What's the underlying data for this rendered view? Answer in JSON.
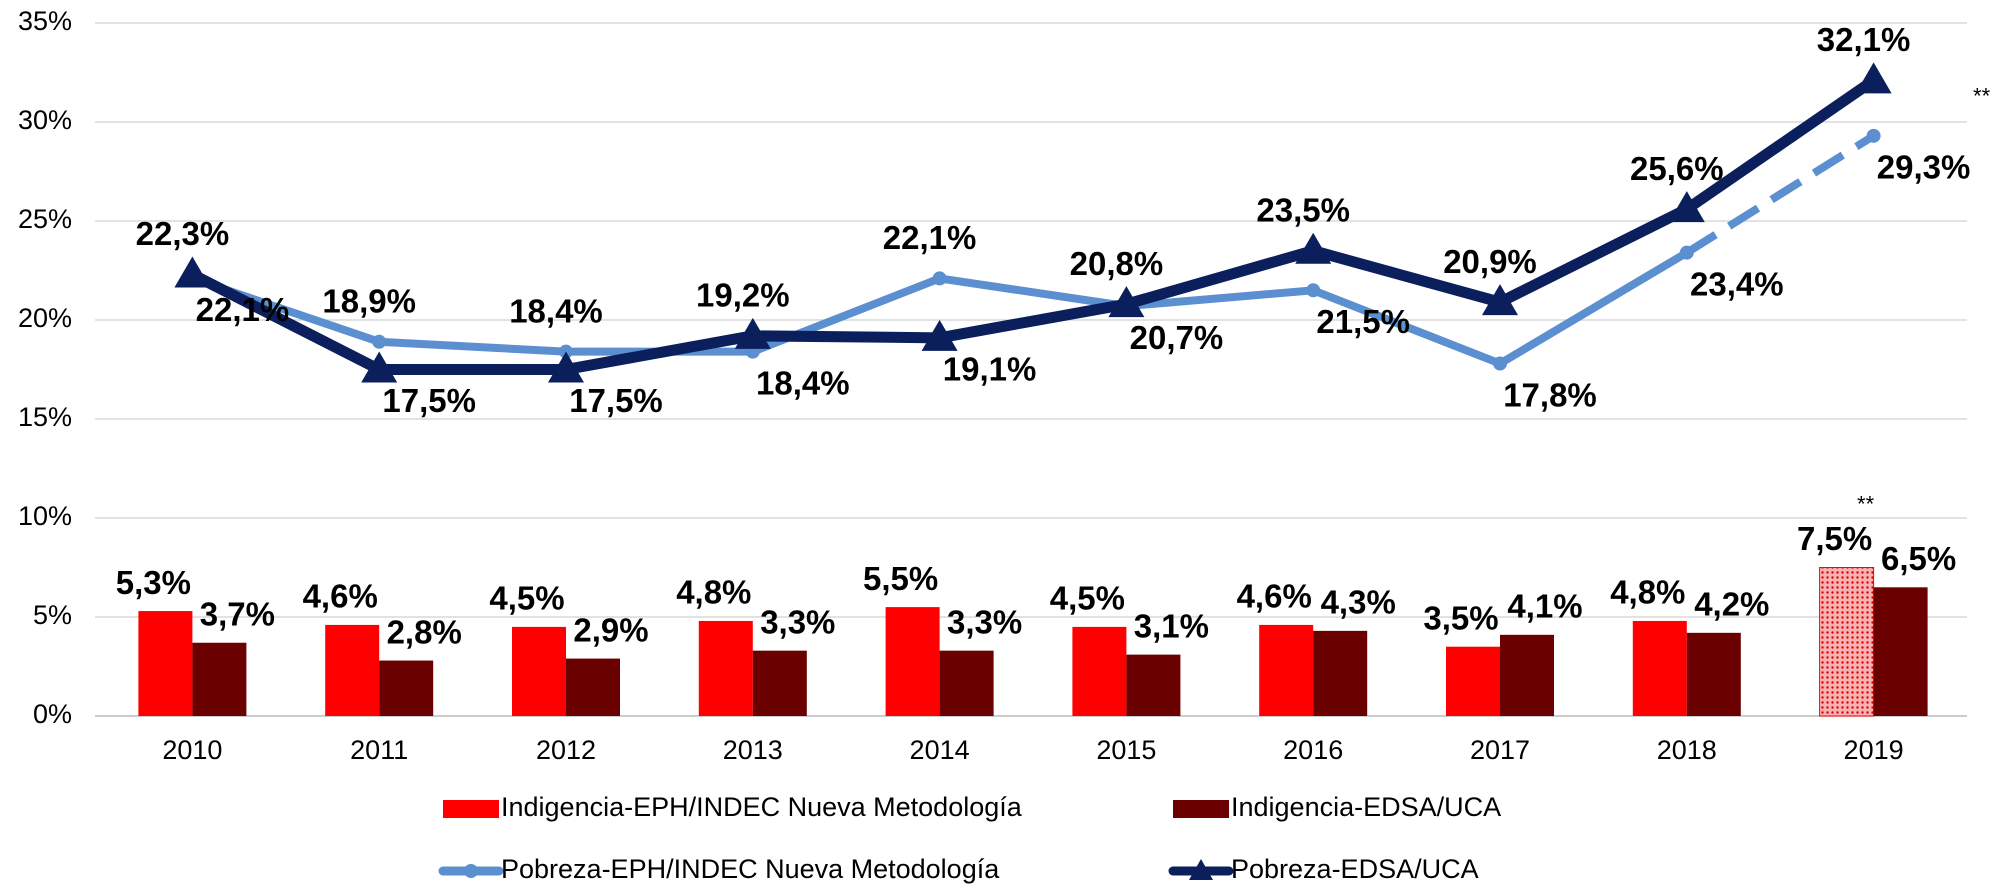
{
  "chart_data": {
    "type": "bar_line",
    "categories": [
      "2010",
      "2011",
      "2012",
      "2013",
      "2014",
      "2015",
      "2016",
      "2017",
      "2018",
      "2019"
    ],
    "series": [
      {
        "name": "Indigencia-EPH/INDEC Nueva Metodología",
        "kind": "bar",
        "color": "#ff0000",
        "hatched_last": true,
        "values": [
          5.3,
          4.6,
          4.5,
          4.8,
          5.5,
          4.5,
          4.6,
          3.5,
          4.8,
          7.5
        ],
        "value_labels": [
          "5,3%",
          "4,6%",
          "4,5%",
          "4,8%",
          "5,5%",
          "4,5%",
          "4,6%",
          "3,5%",
          "4,8%",
          "7,5%"
        ]
      },
      {
        "name": "Indigencia-EDSA/UCA",
        "kind": "bar",
        "color": "#6b0000",
        "values": [
          3.7,
          2.8,
          2.9,
          3.3,
          3.3,
          3.1,
          4.3,
          4.1,
          4.2,
          6.5
        ],
        "value_labels": [
          "3,7%",
          "2,8%",
          "2,9%",
          "3,3%",
          "3,3%",
          "3,1%",
          "4,3%",
          "4,1%",
          "4,2%",
          "6,5%"
        ]
      },
      {
        "name": "Pobreza-EPH/INDEC Nueva Metodología",
        "kind": "line",
        "marker": "circle",
        "color": "#5b8fcf",
        "dashed_last_segment": true,
        "values": [
          22.1,
          18.9,
          18.4,
          18.4,
          22.1,
          20.7,
          21.5,
          17.8,
          23.4,
          29.3
        ],
        "value_labels": [
          "22,1%",
          "18,9%",
          "18,4%",
          "18,4%",
          "22,1%",
          "20,7%",
          "21,5%",
          "17,8%",
          "23,4%",
          "29,3%"
        ]
      },
      {
        "name": "Pobreza-EDSA/UCA",
        "kind": "line",
        "marker": "triangle",
        "color": "#0a1f5c",
        "values": [
          22.3,
          17.5,
          17.5,
          19.2,
          19.1,
          20.8,
          23.5,
          20.9,
          25.6,
          32.1
        ],
        "value_labels": [
          "22,3%",
          "17,5%",
          "17,5%",
          "19,2%",
          "19,1%",
          "20,8%",
          "23,5%",
          "20,9%",
          "25,6%",
          "32,1%"
        ]
      }
    ],
    "annotations": [
      "**",
      "**"
    ],
    "ylim": [
      0,
      35
    ],
    "yticks": [
      {
        "value": 0,
        "label": "0%"
      },
      {
        "value": 5,
        "label": "5%"
      },
      {
        "value": 10,
        "label": "10%"
      },
      {
        "value": 15,
        "label": "15%"
      },
      {
        "value": 20,
        "label": "20%"
      },
      {
        "value": 25,
        "label": "25%"
      },
      {
        "value": 30,
        "label": "30%"
      },
      {
        "value": 35,
        "label": "35%"
      }
    ],
    "grid": true
  }
}
